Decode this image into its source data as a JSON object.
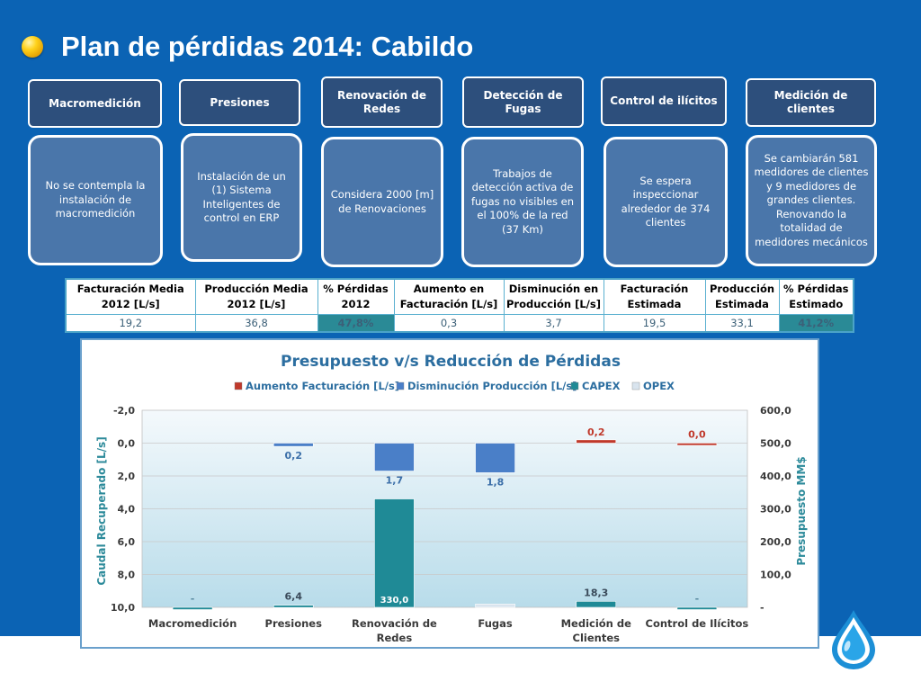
{
  "slide": {
    "title": "Plan de pérdidas 2014: Cabildo"
  },
  "categories": [
    {
      "header": "Macromedición",
      "desc": "No se contempla la instalación de macromedición"
    },
    {
      "header": "Presiones",
      "desc": "Instalación de un (1) Sistema Inteligentes de control en ERP"
    },
    {
      "header": "Renovación de Redes",
      "desc": "Considera 2000 [m] de Renovaciones"
    },
    {
      "header": "Detección de Fugas",
      "desc": "Trabajos de detección activa de fugas no visibles en el 100% de la red (37 Km)"
    },
    {
      "header": "Control de ilícitos",
      "desc": "Se espera inspeccionar alrededor de 374 clientes"
    },
    {
      "header": "Medición de clientes",
      "desc": "Se cambiarán 581 medidores de clientes y 9 medidores de grandes clientes. Renovando la totalidad de medidores mecánicos"
    }
  ],
  "summary_table": {
    "headers": [
      "Facturación Media 2012 [L/s]",
      "Producción Media 2012 [L/s]",
      "% Pérdidas 2012",
      "Aumento en Facturación [L/s]",
      "Disminución en Producción [L/s]",
      "Facturación Estimada",
      "Producción Estimada",
      "% Pérdidas Estimado"
    ],
    "values": [
      "19,2",
      "36,8",
      "47,8%",
      "0,3",
      "3,7",
      "19,5",
      "33,1",
      "41,2%"
    ]
  },
  "chart_data": {
    "type": "bar",
    "title": "Presupuesto v/s Reducción de Pérdidas",
    "categories": [
      "Macromedición",
      "Presiones",
      "Renovación de Redes",
      "Fugas",
      "Medición de Clientes",
      "Control de Ilícitos"
    ],
    "legend_position": "top",
    "grid": true,
    "y_left": {
      "label": "Caudal Recuperado [L/s]",
      "range": [
        -2,
        10
      ],
      "inverted": true,
      "ticks": [
        "-2,0",
        "0,0",
        "2,0",
        "4,0",
        "6,0",
        "8,0",
        "10,0"
      ]
    },
    "y_right": {
      "label": "Presupuesto MM$",
      "range": [
        0,
        600
      ],
      "ticks": [
        "600,0",
        "500,0",
        "400,0",
        "300,0",
        "200,0",
        "100,0",
        "-"
      ]
    },
    "series": [
      {
        "name": "Aumento Facturación [L/s]",
        "axis": "left",
        "color": "#c0392b",
        "values": [
          null,
          null,
          null,
          null,
          -0.2,
          0.0
        ],
        "labels": [
          "",
          "",
          "",
          "",
          "0,2",
          "0,0"
        ]
      },
      {
        "name": "Disminución Producción [L/s]",
        "axis": "left",
        "color": "#4a7fc8",
        "values": [
          null,
          0.2,
          1.7,
          1.8,
          null,
          null
        ],
        "labels": [
          "",
          "0,2",
          "1,7",
          "1,8",
          "",
          ""
        ]
      },
      {
        "name": "CAPEX",
        "axis": "right",
        "color": "#1f8a96",
        "values": [
          0,
          6.4,
          330.0,
          null,
          18.3,
          0
        ],
        "labels": [
          "-",
          "6,4",
          "330,0",
          "",
          "18,3",
          "-"
        ]
      },
      {
        "name": "OPEX",
        "axis": "right",
        "color": "#d9e4ee",
        "values": [
          null,
          null,
          null,
          10,
          null,
          null
        ],
        "labels": [
          "",
          "",
          "",
          "",
          "",
          ""
        ]
      }
    ]
  }
}
